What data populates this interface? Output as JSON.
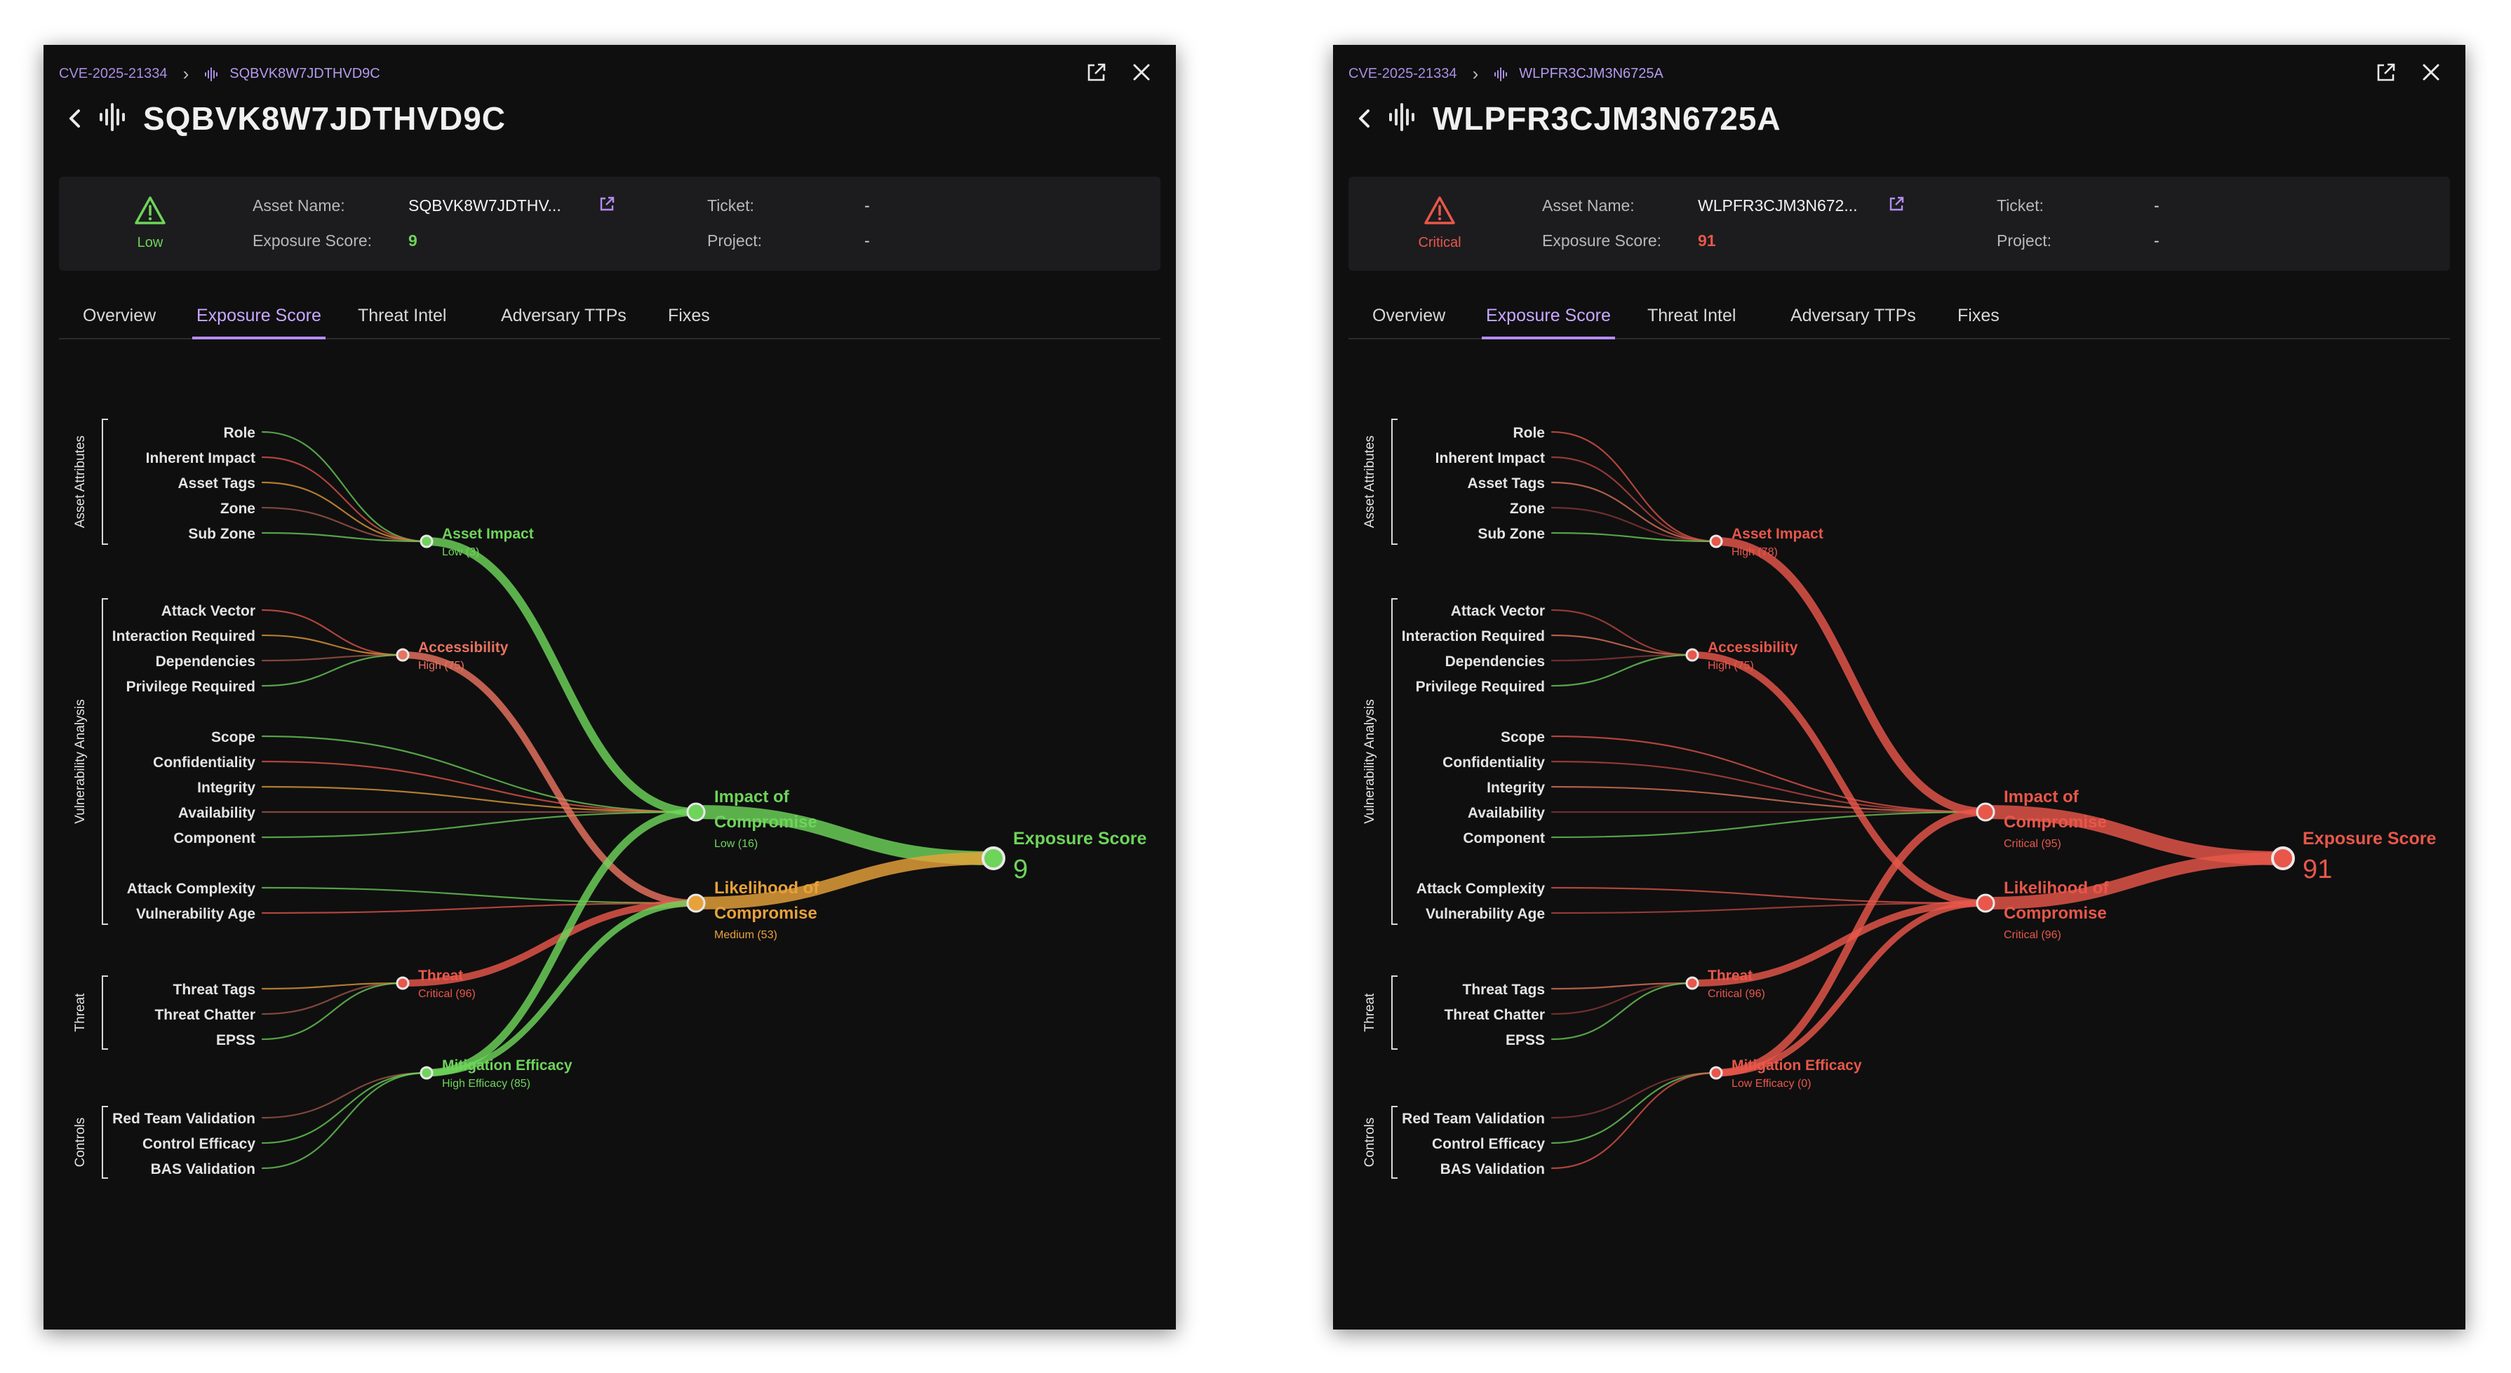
{
  "panels": [
    {
      "id": "left",
      "breadcrumb": {
        "cve": "CVE-2025-21334",
        "asset": "SQBVK8W7JDTHVD9C"
      },
      "title": "SQBVK8W7JDTHVD9C",
      "severity": {
        "label": "Low",
        "color": "#6ed45a"
      },
      "info": {
        "asset_name_label": "Asset Name:",
        "asset_name": "SQBVK8W7JDTHV...",
        "exposure_label": "Exposure Score:",
        "exposure_value": "9",
        "ticket_label": "Ticket:",
        "ticket_value": "-",
        "project_label": "Project:",
        "project_value": "-"
      },
      "tabs": [
        "Overview",
        "Exposure Score",
        "Threat Intel",
        "Adversary TTPs",
        "Fixes"
      ],
      "active_tab": 1,
      "graph": {
        "nodes": {
          "asset_impact": {
            "label": "Asset Impact",
            "sub": "Low (3)",
            "color": "#6ed45a"
          },
          "accessibility": {
            "label": "Accessibility",
            "sub": "High (75)",
            "color": "#e8735f"
          },
          "threat": {
            "label": "Threat",
            "sub": "Critical (96)",
            "color": "#e8574a"
          },
          "mitigation": {
            "label": "Mitigation Efficacy",
            "sub": "High Efficacy (85)",
            "color": "#6ed45a"
          },
          "impact": {
            "label1": "Impact of",
            "label2": "Compromise",
            "sub": "Low (16)",
            "color": "#6ed45a"
          },
          "likelihood": {
            "label1": "Likelihood of",
            "label2": "Compromise",
            "sub": "Medium (53)",
            "color": "#e8a23a"
          },
          "exposure": {
            "label": "Exposure Score",
            "value": "9",
            "color": "#6ed45a"
          }
        }
      }
    },
    {
      "id": "right",
      "breadcrumb": {
        "cve": "CVE-2025-21334",
        "asset": "WLPFR3CJM3N6725A"
      },
      "title": "WLPFR3CJM3N6725A",
      "severity": {
        "label": "Critical",
        "color": "#e8574a"
      },
      "info": {
        "asset_name_label": "Asset Name:",
        "asset_name": "WLPFR3CJM3N672...",
        "exposure_label": "Exposure Score:",
        "exposure_value": "91",
        "ticket_label": "Ticket:",
        "ticket_value": "-",
        "project_label": "Project:",
        "project_value": "-"
      },
      "tabs": [
        "Overview",
        "Exposure Score",
        "Threat Intel",
        "Adversary TTPs",
        "Fixes"
      ],
      "active_tab": 1,
      "graph": {
        "nodes": {
          "asset_impact": {
            "label": "Asset Impact",
            "sub": "High (78)",
            "color": "#e8574a"
          },
          "accessibility": {
            "label": "Accessibility",
            "sub": "High (75)",
            "color": "#e8574a"
          },
          "threat": {
            "label": "Threat",
            "sub": "Critical (96)",
            "color": "#e8574a"
          },
          "mitigation": {
            "label": "Mitigation Efficacy",
            "sub": "Low Efficacy (0)",
            "color": "#e8574a"
          },
          "impact": {
            "label1": "Impact of",
            "label2": "Compromise",
            "sub": "Critical (95)",
            "color": "#e8574a"
          },
          "likelihood": {
            "label1": "Likelihood of",
            "label2": "Compromise",
            "sub": "Critical (96)",
            "color": "#e8574a"
          },
          "exposure": {
            "label": "Exposure Score",
            "value": "91",
            "color": "#e8574a"
          }
        }
      }
    }
  ],
  "groups": [
    {
      "name": "Asset Attributes",
      "items": [
        "Role",
        "Inherent Impact",
        "Asset Tags",
        "Zone",
        "Sub Zone"
      ]
    },
    {
      "name": "Vulnerability Analysis",
      "items": [
        "Attack Vector",
        "Interaction Required",
        "Dependencies",
        "Privilege Required",
        "Scope",
        "Confidentiality",
        "Integrity",
        "Availability",
        "Component",
        "Attack Complexity",
        "Vulnerability Age"
      ]
    },
    {
      "name": "Threat",
      "items": [
        "Threat Tags",
        "Threat Chatter",
        "EPSS"
      ]
    },
    {
      "name": "Controls",
      "items": [
        "Red Team Validation",
        "Control Efficacy",
        "BAS Validation"
      ]
    }
  ],
  "icons": {
    "back": "chevron-left-icon",
    "asset": "sound-wave-icon",
    "open": "external-link-icon",
    "close": "close-icon",
    "severity": "warning-triangle-icon",
    "link": "external-link-icon"
  }
}
